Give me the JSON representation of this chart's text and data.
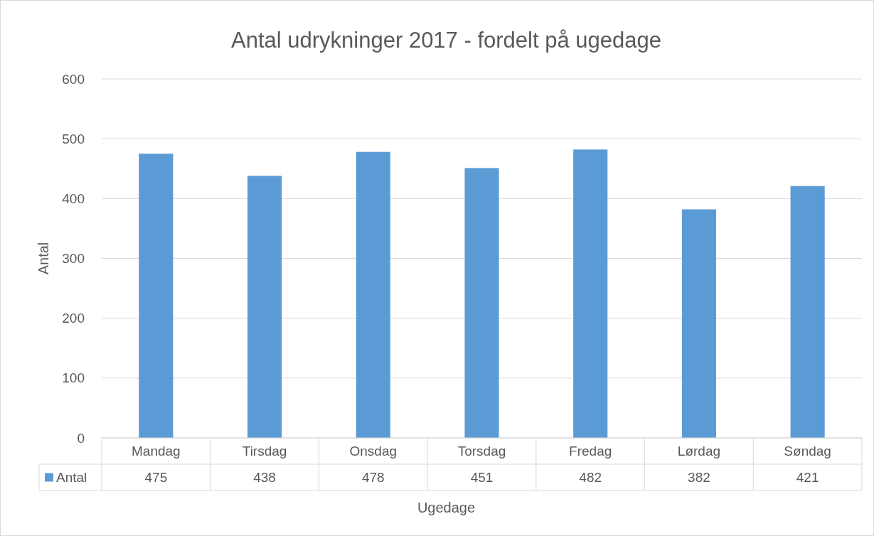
{
  "chart_data": {
    "type": "bar",
    "title": "Antal udrykninger 2017 - fordelt på ugedage",
    "xlabel": "Ugedage",
    "ylabel": "Antal",
    "categories": [
      "Mandag",
      "Tirsdag",
      "Onsdag",
      "Torsdag",
      "Fredag",
      "Lørdag",
      "Søndag"
    ],
    "series": [
      {
        "name": "Antal",
        "color": "#5b9bd5",
        "values": [
          475,
          438,
          478,
          451,
          482,
          382,
          421
        ]
      }
    ],
    "ylim": [
      0,
      600
    ],
    "yticks": [
      0,
      100,
      200,
      300,
      400,
      500,
      600
    ],
    "grid": "y",
    "data_labels": true,
    "legend": "bottom"
  }
}
